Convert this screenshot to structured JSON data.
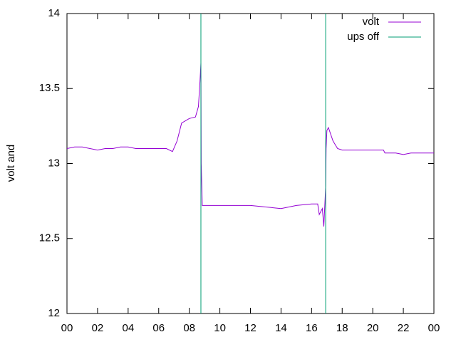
{
  "chart_data": {
    "type": "line",
    "ylabel": "volt and",
    "xlim": [
      0,
      24
    ],
    "xticks": [
      {
        "value": 0,
        "label": "00"
      },
      {
        "value": 2,
        "label": "02"
      },
      {
        "value": 4,
        "label": "04"
      },
      {
        "value": 6,
        "label": "06"
      },
      {
        "value": 8,
        "label": "08"
      },
      10,
      12,
      14,
      16,
      18,
      20,
      22,
      {
        "value": 24,
        "label": "00"
      }
    ],
    "ylim": [
      12,
      14
    ],
    "yticks": [
      12,
      12.5,
      13,
      13.5,
      14
    ],
    "legend": "top-right",
    "series": [
      {
        "name": "volt",
        "color": "#9400d3",
        "style": "lines",
        "x": [
          0,
          0.5,
          1,
          1.5,
          2,
          2.5,
          3,
          3.5,
          4,
          4.5,
          5,
          5.5,
          6,
          6.5,
          6.9,
          7.2,
          7.5,
          8,
          8.4,
          8.6,
          8.7,
          8.76,
          8.78,
          8.85,
          9,
          10,
          11,
          12,
          13,
          14,
          15,
          16,
          16.4,
          16.5,
          16.7,
          16.8,
          16.92,
          16.95,
          17,
          17.1,
          17.4,
          17.7,
          18,
          19,
          20,
          20.7,
          20.8,
          21.5,
          22,
          22.5,
          23,
          23.5,
          24
        ],
        "values": [
          13.1,
          13.11,
          13.11,
          13.1,
          13.09,
          13.1,
          13.1,
          13.11,
          13.11,
          13.1,
          13.1,
          13.1,
          13.1,
          13.1,
          13.08,
          13.15,
          13.27,
          13.3,
          13.31,
          13.38,
          13.55,
          13.67,
          13.0,
          12.72,
          12.72,
          12.72,
          12.72,
          12.72,
          12.71,
          12.7,
          12.72,
          12.73,
          12.73,
          12.66,
          12.7,
          12.58,
          12.85,
          13.1,
          13.22,
          13.24,
          13.15,
          13.1,
          13.09,
          13.09,
          13.09,
          13.09,
          13.07,
          13.07,
          13.06,
          13.07,
          13.07,
          13.07,
          13.07
        ]
      },
      {
        "name": "ups off",
        "color": "#009e73",
        "style": "impulses",
        "x": [
          8.76,
          16.92
        ],
        "values": [
          14,
          14
        ]
      }
    ]
  }
}
